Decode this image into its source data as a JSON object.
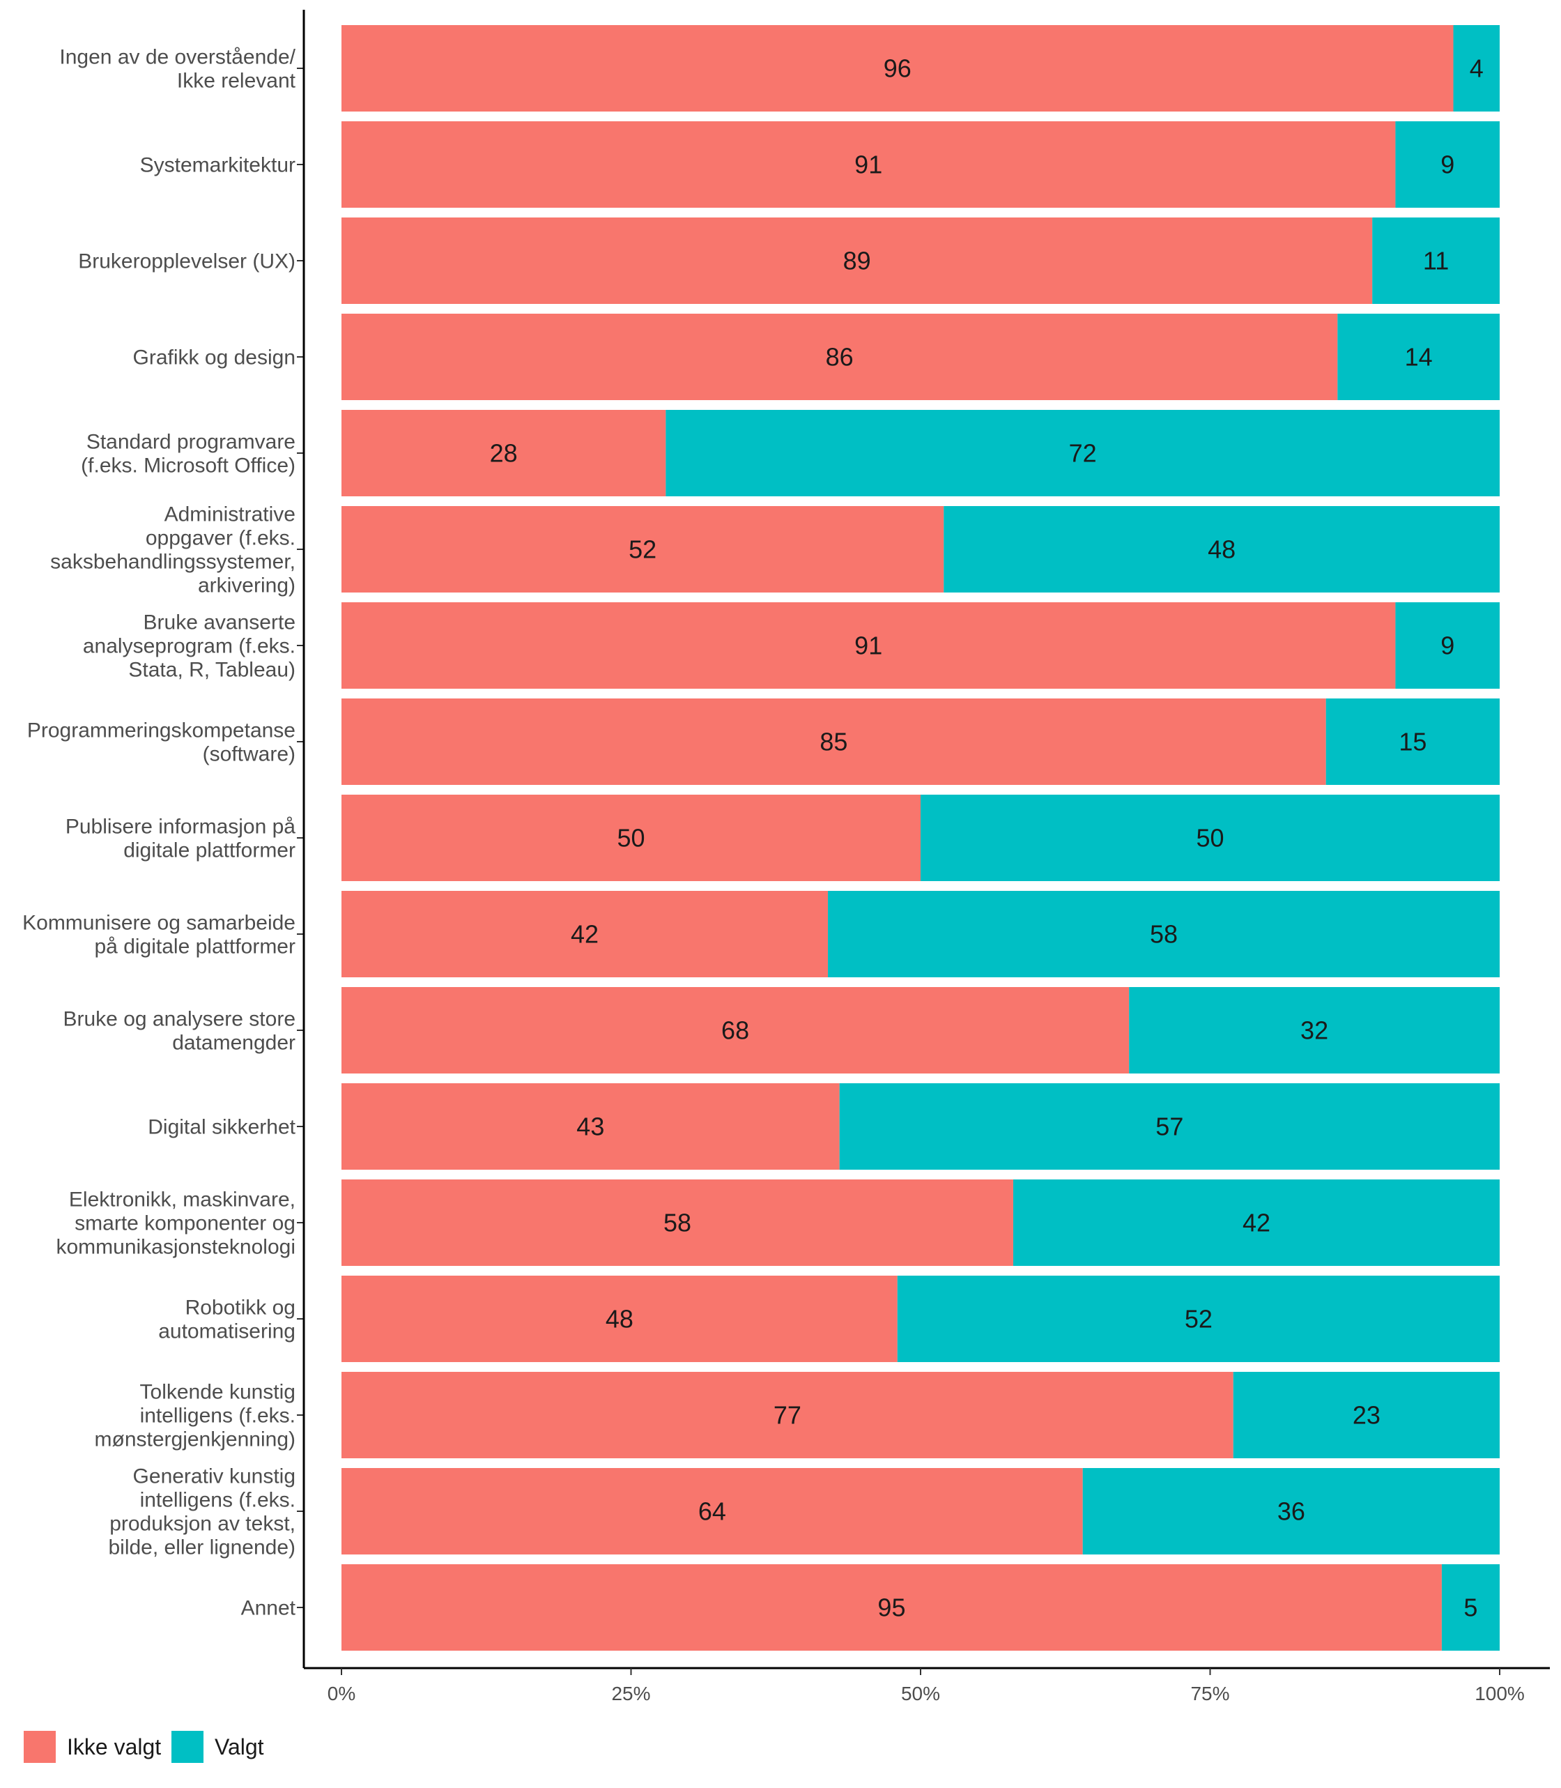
{
  "chart_data": {
    "type": "bar",
    "orientation": "horizontal",
    "stacked": true,
    "normalized": true,
    "categories": [
      "Ingen av de overstående/\nIkke relevant",
      "Systemarkitektur",
      "Brukeropplevelser (UX)",
      "Grafikk og design",
      "Standard programvare\n(f.eks. Microsoft Office)",
      "Administrative\noppgaver (f.eks.\nsaksbehandlingssystemer,\narkivering)",
      "Bruke avanserte\nanalyseprogram (f.eks.\nStata, R, Tableau)",
      "Programmeringskompetanse\n(software)",
      "Publisere informasjon på\ndigitale plattformer",
      "Kommunisere og samarbeide\npå digitale plattformer",
      "Bruke og analysere store\ndatamengder",
      "Digital sikkerhet",
      "Elektronikk, maskinvare,\nsmarte komponenter og\nkommunikasjonsteknologi",
      "Robotikk og\nautomatisering",
      "Tolkende kunstig\nintelligens (f.eks.\nmønstergjenkjenning)",
      "Generativ kunstig\nintelligens (f.eks.\nproduksjon av tekst,\nbilde, eller lignende)",
      "Annet"
    ],
    "series": [
      {
        "name": "Ikke valgt",
        "color": "#f8766d",
        "values": [
          96,
          91,
          89,
          86,
          28,
          52,
          91,
          85,
          50,
          42,
          68,
          43,
          58,
          48,
          77,
          64,
          95
        ]
      },
      {
        "name": "Valgt",
        "color": "#00bfc4",
        "values": [
          4,
          9,
          11,
          14,
          72,
          48,
          9,
          15,
          50,
          58,
          32,
          57,
          42,
          52,
          23,
          36,
          5
        ]
      }
    ],
    "xlim": [
      0,
      100
    ],
    "x_ticks": [
      0,
      25,
      50,
      75,
      100
    ],
    "x_tick_labels": [
      "0%",
      "25%",
      "50%",
      "75%",
      "100%"
    ],
    "title": "",
    "xlabel": "",
    "ylabel": "",
    "grid": false,
    "legend_position": "bottom-left"
  }
}
